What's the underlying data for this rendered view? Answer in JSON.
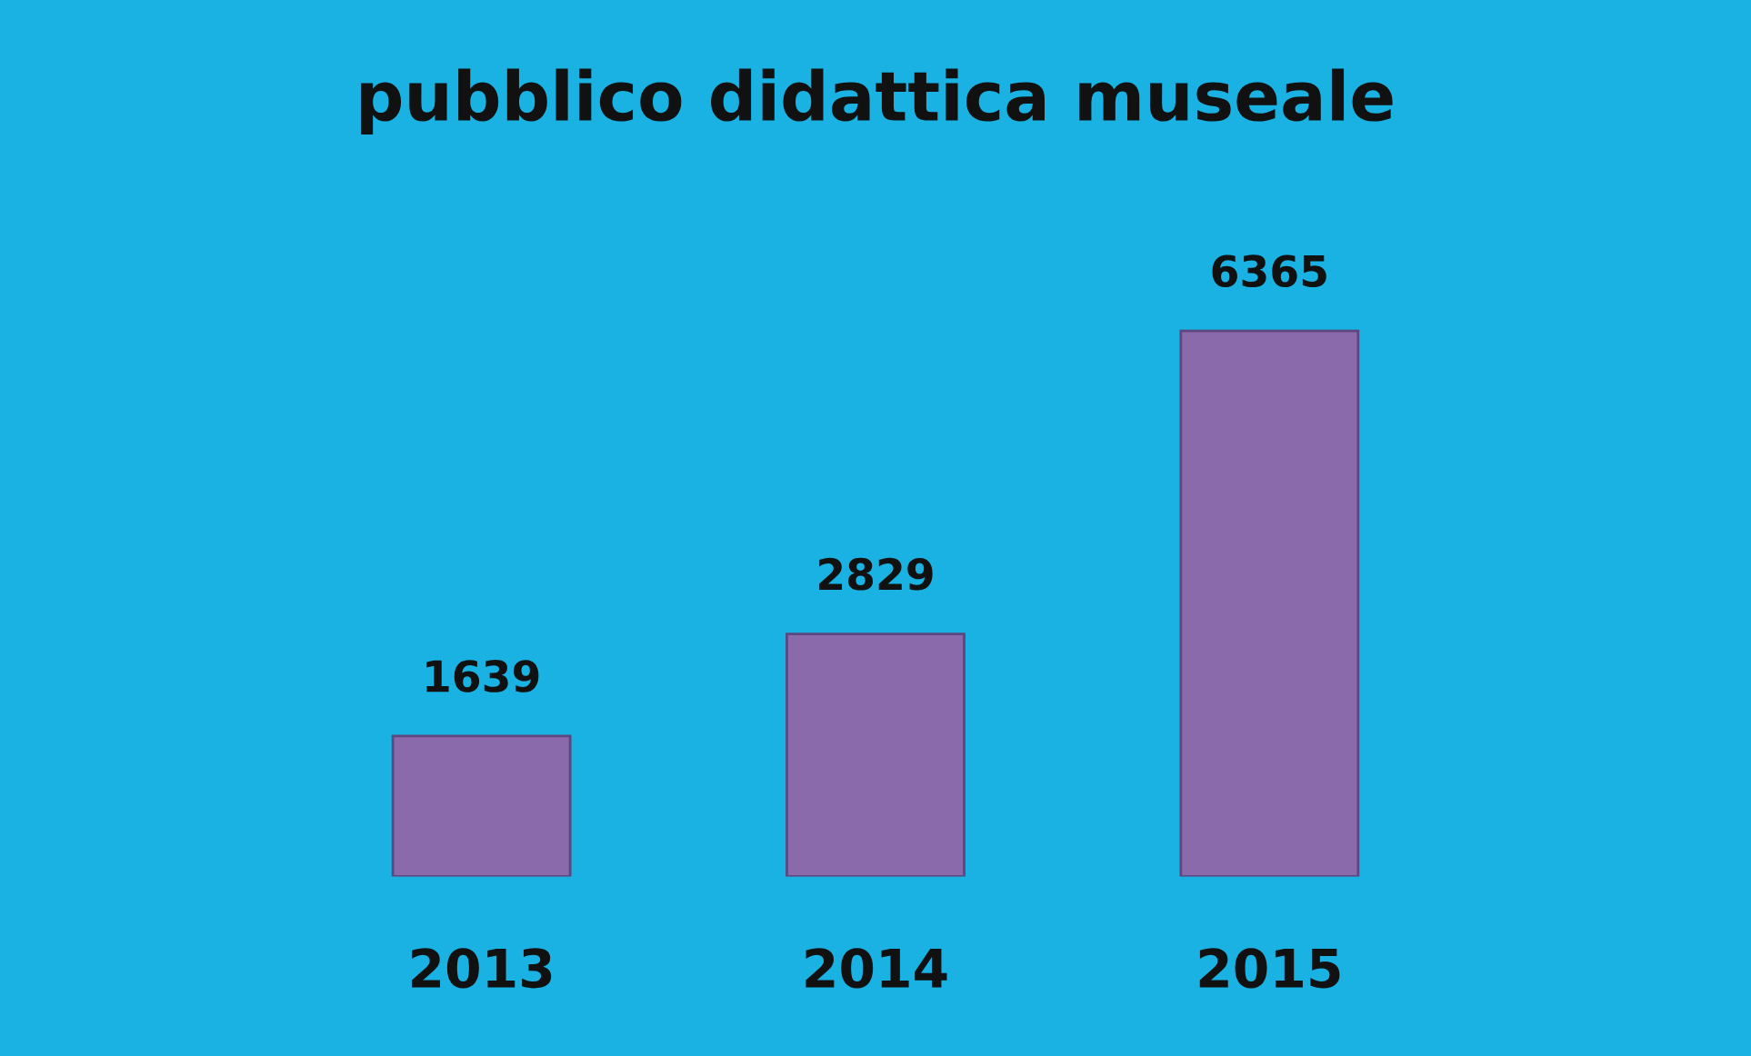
{
  "chart_data": {
    "type": "bar",
    "title": "pubblico didattica museale",
    "categories": [
      "2013",
      "2014",
      "2015"
    ],
    "values": [
      1639,
      2829,
      6365
    ],
    "color": "#8a6aaa",
    "data_labels": true,
    "grid": false,
    "legend": false,
    "tick_labels": "x"
  }
}
